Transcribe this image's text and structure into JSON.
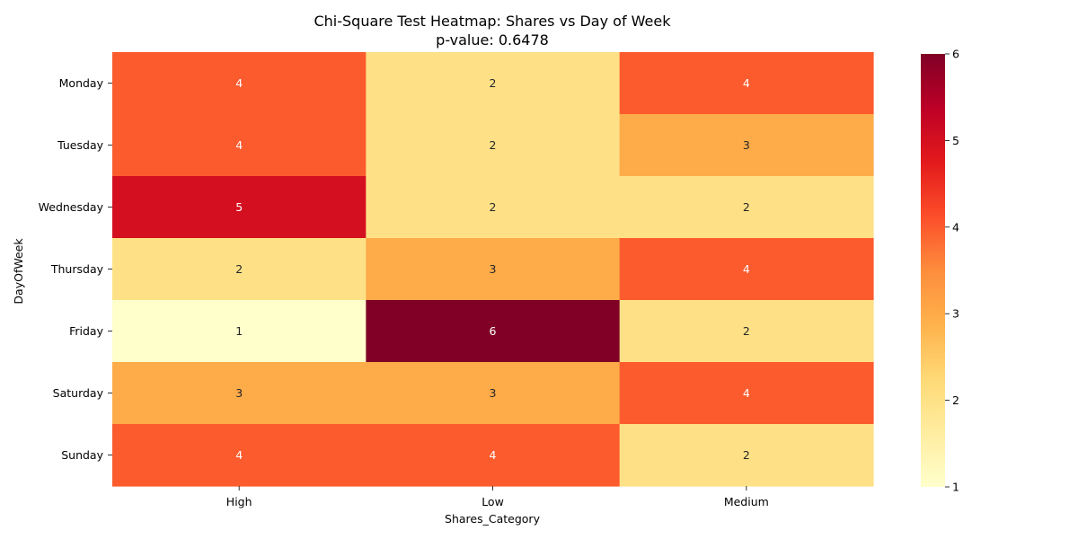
{
  "chart_data": {
    "type": "heatmap",
    "title_line1": "Chi-Square Test Heatmap: Shares vs Day of Week",
    "title_line2": "p-value: 0.6478",
    "xlabel": "Shares_Category",
    "ylabel": "DayOfWeek",
    "x_categories": [
      "High",
      "Low",
      "Medium"
    ],
    "y_categories": [
      "Monday",
      "Tuesday",
      "Wednesday",
      "Thursday",
      "Friday",
      "Saturday",
      "Sunday"
    ],
    "values": [
      [
        4,
        2,
        4
      ],
      [
        4,
        2,
        3
      ],
      [
        5,
        2,
        2
      ],
      [
        2,
        3,
        4
      ],
      [
        1,
        6,
        2
      ],
      [
        3,
        3,
        4
      ],
      [
        4,
        4,
        2
      ]
    ],
    "colormap": "YlOrRd",
    "vmin": 1,
    "vmax": 6,
    "colorbar_ticks": [
      "1",
      "2",
      "3",
      "4",
      "5",
      "6"
    ],
    "annotation_colors": {
      "light": "#ffffff",
      "dark": "#262626"
    }
  }
}
